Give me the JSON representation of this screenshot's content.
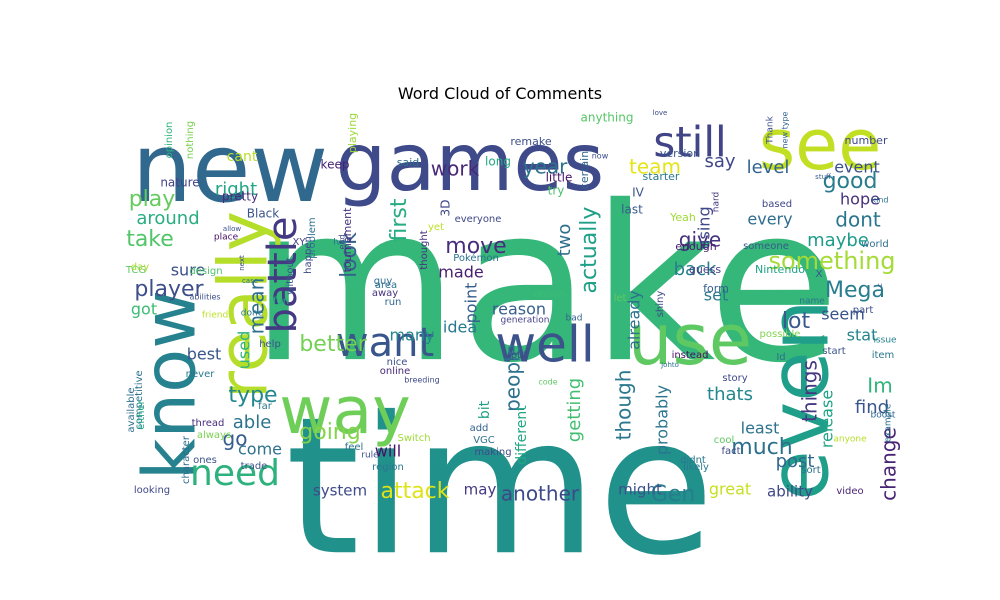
{
  "chart_data": {
    "type": "wordcloud",
    "title": "Word Cloud of Comments",
    "palette": "viridis",
    "words": [
      {
        "text": "make",
        "weight": 100,
        "color": "#35b779"
      },
      {
        "text": "time",
        "weight": 98,
        "color": "#21918c"
      },
      {
        "text": "new",
        "weight": 50,
        "color": "#31688e"
      },
      {
        "text": "games",
        "weight": 40,
        "color": "#3e4a89"
      },
      {
        "text": "see",
        "weight": 40,
        "color": "#c2df23"
      },
      {
        "text": "way",
        "weight": 36,
        "color": "#6ece58"
      },
      {
        "text": "even",
        "weight": 34,
        "color": "#1f9e89"
      },
      {
        "text": "really",
        "weight": 32,
        "color": "#b5de2b"
      },
      {
        "text": "know",
        "weight": 30,
        "color": "#26828e"
      },
      {
        "text": "use",
        "weight": 30,
        "color": "#5ec962"
      },
      {
        "text": "well",
        "weight": 28,
        "color": "#3b528b"
      },
      {
        "text": "still",
        "weight": 22,
        "color": "#414487"
      },
      {
        "text": "battle",
        "weight": 20,
        "color": "#443983"
      },
      {
        "text": "want",
        "weight": 18,
        "color": "#39568c"
      },
      {
        "text": "need",
        "weight": 18,
        "color": "#2db27d"
      },
      {
        "text": "something",
        "weight": 10,
        "color": "#a5db36"
      },
      {
        "text": "Mega",
        "weight": 10,
        "color": "#287d8e"
      },
      {
        "text": "going",
        "weight": 10,
        "color": "#84d44b"
      },
      {
        "text": "work",
        "weight": 9,
        "color": "#482878"
      },
      {
        "text": "team",
        "weight": 9,
        "color": "#e5e419"
      },
      {
        "text": "year",
        "weight": 9,
        "color": "#2c728e"
      },
      {
        "text": "say",
        "weight": 9,
        "color": "#3f4788"
      },
      {
        "text": "good",
        "weight": 9,
        "color": "#297b8e"
      },
      {
        "text": "level",
        "weight": 9,
        "color": "#33638d"
      },
      {
        "text": "first",
        "weight": 9,
        "color": "#25ac82"
      },
      {
        "text": "actually",
        "weight": 9,
        "color": "#1fa088"
      },
      {
        "text": "move",
        "weight": 9,
        "color": "#472d7b"
      },
      {
        "text": "look",
        "weight": 9,
        "color": "#34618d"
      },
      {
        "text": "dont",
        "weight": 9,
        "color": "#2a768e"
      },
      {
        "text": "play",
        "weight": 9,
        "color": "#65cb5e"
      },
      {
        "text": "take",
        "weight": 9,
        "color": "#52c569"
      },
      {
        "text": "right",
        "weight": 8,
        "color": "#22a785"
      },
      {
        "text": "around",
        "weight": 8,
        "color": "#28ae80"
      },
      {
        "text": "player",
        "weight": 8,
        "color": "#3d4e8a"
      },
      {
        "text": "better",
        "weight": 8,
        "color": "#75d054"
      },
      {
        "text": "lot",
        "weight": 8,
        "color": "#38598c"
      },
      {
        "text": "mean",
        "weight": 8,
        "color": "#2e6e8e"
      },
      {
        "text": "give",
        "weight": 8,
        "color": "#46327e"
      },
      {
        "text": "made",
        "weight": 7,
        "color": "#481f70"
      },
      {
        "text": "two",
        "weight": 7,
        "color": "#2e6f8e"
      },
      {
        "text": "back",
        "weight": 7,
        "color": "#277f8e"
      },
      {
        "text": "type",
        "weight": 7,
        "color": "#23888e"
      },
      {
        "text": "able",
        "weight": 7,
        "color": "#2b748e"
      },
      {
        "text": "Im",
        "weight": 7,
        "color": "#2fb47c"
      },
      {
        "text": "attack",
        "weight": 7,
        "color": "#dde318"
      },
      {
        "text": "Gen",
        "weight": 7,
        "color": "#287c8e"
      },
      {
        "text": "another",
        "weight": 7,
        "color": "#3e4989"
      },
      {
        "text": "things",
        "weight": 7,
        "color": "#453781"
      },
      {
        "text": "much",
        "weight": 7,
        "color": "#2d708e"
      },
      {
        "text": "change",
        "weight": 7,
        "color": "#482475"
      },
      {
        "text": "people",
        "weight": 7,
        "color": "#2c718e"
      },
      {
        "text": "thats",
        "weight": 6,
        "color": "#24878e"
      },
      {
        "text": "find",
        "weight": 6,
        "color": "#39558c"
      },
      {
        "text": "post",
        "weight": 6,
        "color": "#31678e"
      },
      {
        "text": "getting",
        "weight": 6,
        "color": "#42be71"
      },
      {
        "text": "though",
        "weight": 6,
        "color": "#2a788e"
      },
      {
        "text": "maybe",
        "weight": 6,
        "color": "#1e9c89"
      },
      {
        "text": "hope",
        "weight": 6,
        "color": "#472f7d"
      },
      {
        "text": "every",
        "weight": 6,
        "color": "#2e6d8e"
      },
      {
        "text": "seem",
        "weight": 6,
        "color": "#3a538b"
      },
      {
        "text": "stat",
        "weight": 6,
        "color": "#25838e"
      },
      {
        "text": "event",
        "weight": 5,
        "color": "#3b518b"
      },
      {
        "text": "set",
        "weight": 5,
        "color": "#2a778e"
      },
      {
        "text": "reason",
        "weight": 5,
        "color": "#355f8d"
      },
      {
        "text": "idea",
        "weight": 5,
        "color": "#29798e"
      },
      {
        "text": "using",
        "weight": 5,
        "color": "#3f4889"
      },
      {
        "text": "already",
        "weight": 5,
        "color": "#2c738e"
      },
      {
        "text": "probably",
        "weight": 5,
        "color": "#2b758e"
      },
      {
        "text": "go",
        "weight": 6,
        "color": "#365d8d"
      },
      {
        "text": "come",
        "weight": 5,
        "color": "#2d718e"
      },
      {
        "text": "will",
        "weight": 5,
        "color": "#471063"
      },
      {
        "text": "many",
        "weight": 5,
        "color": "#24868e"
      },
      {
        "text": "release",
        "weight": 5,
        "color": "#20a486"
      },
      {
        "text": "best",
        "weight": 5,
        "color": "#38578c"
      },
      {
        "text": "got",
        "weight": 5,
        "color": "#3dbc74"
      },
      {
        "text": "sure",
        "weight": 5,
        "color": "#3c4f8a"
      },
      {
        "text": "used",
        "weight": 5,
        "color": "#2fb47c"
      },
      {
        "text": "least",
        "weight": 5,
        "color": "#2c738e"
      },
      {
        "text": "great",
        "weight": 5,
        "color": "#c8e020"
      },
      {
        "text": "ability",
        "weight": 5,
        "color": "#3f4788"
      },
      {
        "text": "system",
        "weight": 5,
        "color": "#3e4a89"
      },
      {
        "text": "might",
        "weight": 5,
        "color": "#3b528b"
      },
      {
        "text": "may",
        "weight": 5,
        "color": "#443a83"
      },
      {
        "text": "different",
        "weight": 5,
        "color": "#22a884"
      },
      {
        "text": "point",
        "weight": 5,
        "color": "#355e8d"
      },
      {
        "text": "bit",
        "weight": 5,
        "color": "#20a386"
      },
      {
        "text": "cant",
        "weight": 5,
        "color": "#b8de29"
      },
      {
        "text": "pretty",
        "weight": 4,
        "color": "#472c7a"
      },
      {
        "text": "Black",
        "weight": 4,
        "color": "#3a548c"
      },
      {
        "text": "nature",
        "weight": 4,
        "color": "#414287"
      },
      {
        "text": "3D",
        "weight": 4,
        "color": "#404688"
      },
      {
        "text": "IV",
        "weight": 4,
        "color": "#3b528b"
      },
      {
        "text": "last",
        "weight": 4,
        "color": "#375a8c"
      },
      {
        "text": "little",
        "weight": 4,
        "color": "#471365"
      },
      {
        "text": "try",
        "weight": 4,
        "color": "#4ac16d"
      },
      {
        "text": "long",
        "weight": 4,
        "color": "#25ab82"
      },
      {
        "text": "keep",
        "weight": 4,
        "color": "#482374"
      },
      {
        "text": "said",
        "weight": 4,
        "color": "#2e6e8e"
      },
      {
        "text": "remake",
        "weight": 4,
        "color": "#3c4f8a"
      },
      {
        "text": "anything",
        "weight": 4,
        "color": "#56c667"
      },
      {
        "text": "version",
        "weight": 4,
        "color": "#39568c"
      },
      {
        "text": "certain",
        "weight": 4,
        "color": "#31668e"
      },
      {
        "text": "starter",
        "weight": 4,
        "color": "#2a778e"
      },
      {
        "text": "number",
        "weight": 4,
        "color": "#3f4889"
      },
      {
        "text": "opinion",
        "weight": 3,
        "color": "#2db27d"
      },
      {
        "text": "nothing",
        "weight": 3,
        "color": "#7ad151"
      },
      {
        "text": "playing",
        "weight": 3,
        "color": "#9bd93c"
      },
      {
        "text": "Pokémon",
        "weight": 4,
        "color": "#2c728e"
      },
      {
        "text": "enough",
        "weight": 4,
        "color": "#481b6d"
      },
      {
        "text": "guess",
        "weight": 4,
        "color": "#433d84"
      },
      {
        "text": "form",
        "weight": 4,
        "color": "#355f8d"
      },
      {
        "text": "Nintendo",
        "weight": 4,
        "color": "#20a386"
      },
      {
        "text": "someone",
        "weight": 4,
        "color": "#38588c"
      },
      {
        "text": "based",
        "weight": 3,
        "color": "#3f4788"
      },
      {
        "text": "world",
        "weight": 3,
        "color": "#2e6e8e"
      },
      {
        "text": "Yeah",
        "weight": 4,
        "color": "#a0da39"
      },
      {
        "text": "tournament",
        "weight": 4,
        "color": "#472f7d"
      },
      {
        "text": "thought",
        "weight": 4,
        "color": "#46327e"
      },
      {
        "text": "everyone",
        "weight": 4,
        "color": "#3f4889"
      },
      {
        "text": "yet",
        "weight": 4,
        "color": "#bddf26"
      },
      {
        "text": "TCG",
        "weight": 4,
        "color": "#5ec962"
      },
      {
        "text": "day",
        "weight": 4,
        "color": "#a8db34"
      },
      {
        "text": "design",
        "weight": 4,
        "color": "#4ec36b"
      },
      {
        "text": "place",
        "weight": 4,
        "color": "#440f62"
      },
      {
        "text": "friend",
        "weight": 3,
        "color": "#bddf26"
      },
      {
        "text": "abilities",
        "weight": 3,
        "color": "#3d4e8a"
      },
      {
        "text": "done",
        "weight": 4,
        "color": "#2a788e"
      },
      {
        "text": "fun",
        "weight": 4,
        "color": "#25ac82"
      },
      {
        "text": "happen",
        "weight": 4,
        "color": "#3f4889"
      },
      {
        "text": "without",
        "weight": 4,
        "color": "#3a548c"
      },
      {
        "text": "problem",
        "weight": 4,
        "color": "#2c718e"
      },
      {
        "text": "guy",
        "weight": 4,
        "color": "#2f6b8e"
      },
      {
        "text": "away",
        "weight": 4,
        "color": "#46327e"
      },
      {
        "text": "area",
        "weight": 4,
        "color": "#2d708e"
      },
      {
        "text": "run",
        "weight": 4,
        "color": "#31668e"
      },
      {
        "text": "option",
        "weight": 4,
        "color": "#3dbc74"
      },
      {
        "text": "generation",
        "weight": 3,
        "color": "#423f85"
      },
      {
        "text": "shiny",
        "weight": 4,
        "color": "#3f4788"
      },
      {
        "text": "let",
        "weight": 3,
        "color": "#5ec962"
      },
      {
        "text": "bad",
        "weight": 3,
        "color": "#34618d"
      },
      {
        "text": "possible",
        "weight": 4,
        "color": "#7fd34e"
      },
      {
        "text": "name",
        "weight": 3,
        "color": "#2c738e"
      },
      {
        "text": "part",
        "weight": 4,
        "color": "#3c4f8a"
      },
      {
        "text": "issue",
        "weight": 3,
        "color": "#26818e"
      },
      {
        "text": "start",
        "weight": 4,
        "color": "#3a548c"
      },
      {
        "text": "item",
        "weight": 4,
        "color": "#2a788e"
      },
      {
        "text": "Id",
        "weight": 4,
        "color": "#2d708e"
      },
      {
        "text": "instead",
        "weight": 4,
        "color": "#471164"
      },
      {
        "text": "put",
        "weight": 4,
        "color": "#3e4a89"
      },
      {
        "text": "nice",
        "weight": 4,
        "color": "#3c4f8a"
      },
      {
        "text": "online",
        "weight": 4,
        "color": "#472a7a"
      },
      {
        "text": "help",
        "weight": 4,
        "color": "#3b528b"
      },
      {
        "text": "competitive",
        "weight": 4,
        "color": "#2b758e"
      },
      {
        "text": "available",
        "weight": 4,
        "color": "#2e6e8e"
      },
      {
        "text": "never",
        "weight": 4,
        "color": "#2a788e"
      },
      {
        "text": "far",
        "weight": 4,
        "color": "#2c738e"
      },
      {
        "text": "thread",
        "weight": 4,
        "color": "#472d7b"
      },
      {
        "text": "either",
        "weight": 4,
        "color": "#22a884"
      },
      {
        "text": "always",
        "weight": 4,
        "color": "#7ad151"
      },
      {
        "text": "character",
        "weight": 4,
        "color": "#2f6c8e"
      },
      {
        "text": "ones",
        "weight": 4,
        "color": "#3a538b"
      },
      {
        "text": "trade",
        "weight": 4,
        "color": "#3b528b"
      },
      {
        "text": "feel",
        "weight": 4,
        "color": "#2c728e"
      },
      {
        "text": "add",
        "weight": 4,
        "color": "#33638d"
      },
      {
        "text": "VGC",
        "weight": 4,
        "color": "#2c728e"
      },
      {
        "text": "making",
        "weight": 4,
        "color": "#3e4a89"
      },
      {
        "text": "Switch",
        "weight": 4,
        "color": "#a0da39"
      },
      {
        "text": "region",
        "weight": 4,
        "color": "#2a778e"
      },
      {
        "text": "rule",
        "weight": 3,
        "color": "#3b528b"
      },
      {
        "text": "cool",
        "weight": 4,
        "color": "#5ec962"
      },
      {
        "text": "story",
        "weight": 4,
        "color": "#3f4889"
      },
      {
        "text": "fact",
        "weight": 4,
        "color": "#3e4a89"
      },
      {
        "text": "didnt",
        "weight": 4,
        "color": "#2a778e"
      },
      {
        "text": "likely",
        "weight": 4,
        "color": "#2a788e"
      },
      {
        "text": "sort",
        "weight": 4,
        "color": "#2e6f8e"
      },
      {
        "text": "anyone",
        "weight": 3,
        "color": "#b5de2b"
      },
      {
        "text": "example",
        "weight": 3,
        "color": "#2c728e"
      },
      {
        "text": "looking",
        "weight": 4,
        "color": "#3f4889"
      },
      {
        "text": "video",
        "weight": 4,
        "color": "#482575"
      },
      {
        "text": "boost",
        "weight": 3,
        "color": "#2f6b8e"
      },
      {
        "text": "love",
        "weight": 3,
        "color": "#3e4a89"
      },
      {
        "text": "Thank",
        "weight": 3,
        "color": "#3b528b"
      },
      {
        "text": "new type",
        "weight": 3,
        "color": "#31678e"
      },
      {
        "text": "hard",
        "weight": 3,
        "color": "#453781"
      },
      {
        "text": "kind",
        "weight": 3,
        "color": "#2c728e"
      },
      {
        "text": "stuff",
        "weight": 3,
        "color": "#375a8c"
      },
      {
        "text": "XY",
        "weight": 4,
        "color": "#433d84"
      },
      {
        "text": "end",
        "weight": 3,
        "color": "#3f4889"
      },
      {
        "text": "Ive",
        "weight": 3,
        "color": "#2c728e"
      },
      {
        "text": "allow",
        "weight": 3,
        "color": "#3b528b"
      },
      {
        "text": "Johto",
        "weight": 3,
        "color": "#2c728e"
      },
      {
        "text": "breeding",
        "weight": 3,
        "color": "#3e4a89"
      },
      {
        "text": "code",
        "weight": 3,
        "color": "#5ec962"
      },
      {
        "text": "X",
        "weight": 4,
        "color": "#3b528b"
      },
      {
        "text": "case",
        "weight": 3,
        "color": "#2d708e"
      },
      {
        "text": "next",
        "weight": 3,
        "color": "#3f4889"
      },
      {
        "text": "now",
        "weight": 3,
        "color": "#3e4a89"
      },
      {
        "text": "c",
        "weight": 3,
        "color": "#3b528b"
      }
    ]
  }
}
